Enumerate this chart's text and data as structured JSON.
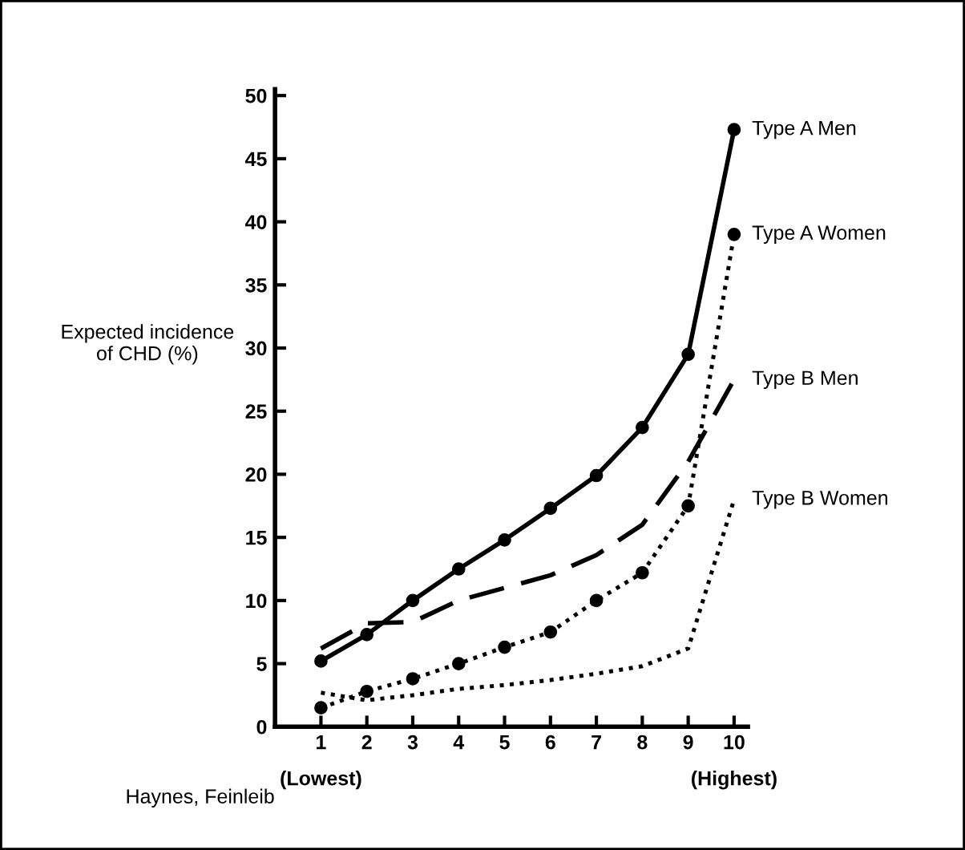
{
  "chart_data": {
    "type": "line",
    "ylabel": "Expected incidence\nof CHD (%)",
    "x": [
      1,
      2,
      3,
      4,
      5,
      6,
      7,
      8,
      9,
      10
    ],
    "xlim": [
      0,
      10.3
    ],
    "ylim": [
      0,
      50.5
    ],
    "xticks": [
      {
        "value": 1,
        "label": "1\n(Lowest)"
      },
      2,
      3,
      4,
      5,
      6,
      7,
      8,
      9,
      {
        "value": 10,
        "label": "10\n(Highest)"
      }
    ],
    "yticks": [
      0,
      5,
      10,
      15,
      20,
      25,
      30,
      35,
      40,
      45,
      50
    ],
    "grid": false,
    "legend": false,
    "series": [
      {
        "name": "Type A Men",
        "color": "#000000",
        "line_style": "solid",
        "marker": "circle",
        "values": [
          5.2,
          7.3,
          10,
          12.5,
          14.8,
          17.3,
          19.9,
          23.7,
          29.5,
          47.3
        ]
      },
      {
        "name": "Type A Women",
        "color": "#000000",
        "line_style": "dotted",
        "marker": "circle",
        "values": [
          1.5,
          2.8,
          3.8,
          5,
          6.3,
          7.5,
          10,
          12.2,
          17.5,
          39
        ]
      },
      {
        "name": "Type B Men",
        "color": "#000000",
        "line_style": "dashed",
        "marker": "none",
        "values": [
          6.2,
          8.2,
          8.3,
          10,
          11,
          12,
          13.6,
          16,
          21,
          27.5
        ]
      },
      {
        "name": "Type B Women",
        "color": "#000000",
        "line_style": "dotted",
        "marker": "none",
        "values": [
          2.7,
          2.1,
          2.5,
          3,
          3.3,
          3.7,
          4.2,
          4.8,
          6.2,
          18
        ]
      }
    ],
    "annotations": [
      "Haynes, Feinleib"
    ]
  }
}
